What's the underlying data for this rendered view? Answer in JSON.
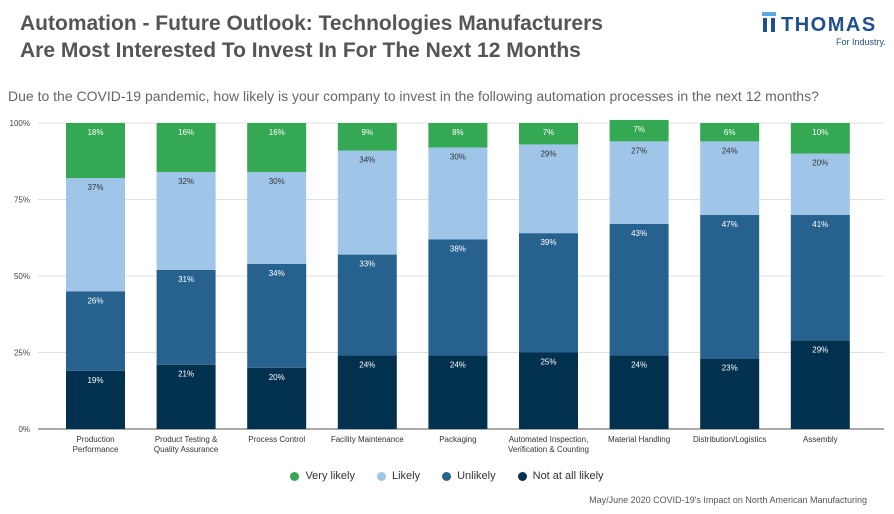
{
  "header": {
    "title_line1": "Automation - Future Outlook: Technologies Manufacturers",
    "title_line2": "Are Most Interested To Invest In For The Next 12 Months"
  },
  "logo": {
    "name": "THOMAS",
    "tagline": "For Industry."
  },
  "footnote": "May/June 2020 COVID-19's Impact on North American Manufacturing",
  "chart_data": {
    "type": "bar",
    "stacked": true,
    "title": "Due to the COVID-19 pandemic, how likely is your company to invest in the following automation processes in the next 12 months?",
    "categories": [
      [
        "Production",
        "Performance"
      ],
      [
        "Product Testing &",
        "Quality Assurance"
      ],
      [
        "Process Control"
      ],
      [
        "Facility Maintenance"
      ],
      [
        "Packaging"
      ],
      [
        "Automated Inspection,",
        "Verification & Counting"
      ],
      [
        "Material Handling"
      ],
      [
        "Distribution/Logistics"
      ],
      [
        "Assembly"
      ]
    ],
    "series": [
      {
        "name": "Not at all likely",
        "color": "#02314f",
        "label_color": "#ffffff",
        "values": [
          19,
          21,
          20,
          24,
          24,
          25,
          24,
          23,
          29
        ]
      },
      {
        "name": "Unlikely",
        "color": "#27628f",
        "label_color": "#ffffff",
        "values": [
          26,
          31,
          34,
          33,
          38,
          39,
          43,
          47,
          41
        ]
      },
      {
        "name": "Likely",
        "color": "#9fc5e8",
        "label_color": "#333333",
        "values": [
          37,
          32,
          30,
          34,
          30,
          29,
          27,
          24,
          20
        ]
      },
      {
        "name": "Very likely",
        "color": "#34a853",
        "label_color": "#ffffff",
        "values": [
          18,
          16,
          16,
          9,
          8,
          7,
          7,
          6,
          10
        ]
      }
    ],
    "legend_order": [
      "Very likely",
      "Likely",
      "Unlikely",
      "Not at all likely"
    ],
    "yticks": [
      "0%",
      "25%",
      "50%",
      "75%",
      "100%"
    ],
    "ylim": [
      0,
      100
    ],
    "grid": true,
    "legend_position": "bottom"
  }
}
